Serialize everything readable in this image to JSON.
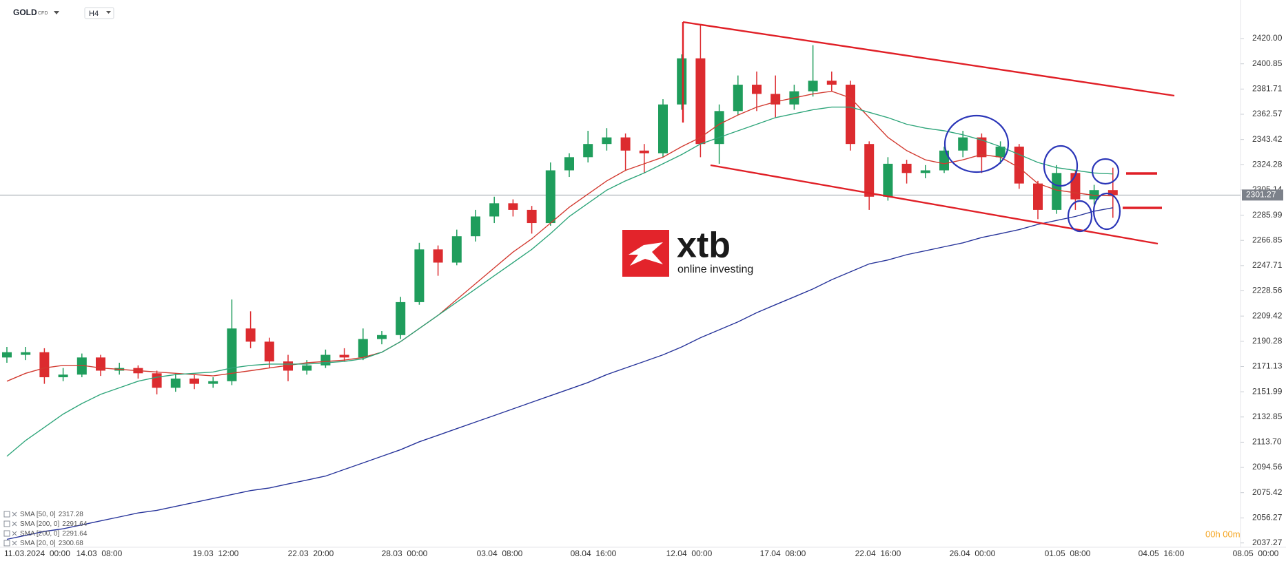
{
  "chart_data": {
    "type": "candlestick",
    "symbol": "GOLD",
    "instrument_type": "CFD",
    "interval": "H4",
    "up_color": "#1f9d5c",
    "down_color": "#dc2b2f",
    "open": [
      2178,
      2180,
      2182,
      2163,
      2165,
      2178,
      2168,
      2170,
      2166,
      2155,
      2162,
      2158,
      2160,
      2200,
      2190,
      2175,
      2168,
      2172,
      2180,
      2178,
      2192,
      2195,
      2220,
      2260,
      2250,
      2270,
      2285,
      2295,
      2290,
      2280,
      2320,
      2330,
      2340,
      2345,
      2335,
      2333,
      2370,
      2405,
      2340,
      2365,
      2385,
      2378,
      2370,
      2380,
      2388,
      2385,
      2340,
      2300,
      2325,
      2318,
      2320,
      2335,
      2345,
      2330,
      2338,
      2310,
      2290,
      2318,
      2298,
      2305
    ],
    "high": [
      2186,
      2186,
      2185,
      2170,
      2181,
      2180,
      2174,
      2172,
      2168,
      2166,
      2165,
      2163,
      2222,
      2213,
      2193,
      2180,
      2176,
      2184,
      2185,
      2200,
      2198,
      2224,
      2265,
      2263,
      2275,
      2290,
      2300,
      2298,
      2293,
      2326,
      2333,
      2350,
      2352,
      2348,
      2340,
      2374,
      2408,
      2431,
      2370,
      2392,
      2395,
      2392,
      2385,
      2415,
      2395,
      2388,
      2342,
      2330,
      2328,
      2324,
      2338,
      2350,
      2348,
      2342,
      2340,
      2312,
      2324,
      2320,
      2309,
      2322
    ],
    "low": [
      2174,
      2176,
      2158,
      2160,
      2163,
      2164,
      2165,
      2162,
      2150,
      2152,
      2154,
      2155,
      2157,
      2185,
      2170,
      2160,
      2165,
      2170,
      2175,
      2176,
      2188,
      2192,
      2218,
      2240,
      2248,
      2266,
      2280,
      2285,
      2272,
      2278,
      2315,
      2326,
      2335,
      2320,
      2318,
      2330,
      2366,
      2330,
      2325,
      2362,
      2365,
      2360,
      2366,
      2376,
      2380,
      2335,
      2290,
      2297,
      2310,
      2314,
      2318,
      2330,
      2318,
      2325,
      2306,
      2283,
      2287,
      2290,
      2294,
      2284
    ],
    "close": [
      2182,
      2182,
      2163,
      2165,
      2178,
      2168,
      2170,
      2166,
      2155,
      2162,
      2158,
      2160,
      2200,
      2190,
      2175,
      2168,
      2172,
      2180,
      2178,
      2192,
      2195,
      2220,
      2260,
      2250,
      2270,
      2285,
      2295,
      2290,
      2280,
      2320,
      2330,
      2340,
      2345,
      2335,
      2333,
      2370,
      2405,
      2340,
      2365,
      2385,
      2378,
      2370,
      2380,
      2388,
      2385,
      2340,
      2300,
      2325,
      2318,
      2320,
      2335,
      2345,
      2330,
      2338,
      2310,
      2290,
      2318,
      2298,
      2305,
      2301.27
    ],
    "series": [
      {
        "color": "#d23a30",
        "values": [
          2160,
          2166,
          2170,
          2172,
          2172,
          2170,
          2169,
          2168,
          2167,
          2166,
          2165,
          2164,
          2166,
          2168,
          2170,
          2172,
          2174,
          2175,
          2176,
          2178,
          2182,
          2190,
          2200,
          2210,
          2222,
          2234,
          2246,
          2258,
          2268,
          2280,
          2292,
          2302,
          2312,
          2320,
          2325,
          2330,
          2338,
          2345,
          2355,
          2362,
          2368,
          2372,
          2375,
          2378,
          2380,
          2375,
          2360,
          2345,
          2335,
          2328,
          2325,
          2328,
          2332,
          2330,
          2322,
          2310,
          2305,
          2303,
          2301,
          2300.68
        ]
      },
      {
        "color": "#2ea57a",
        "values": [
          2103,
          2115,
          2125,
          2135,
          2143,
          2150,
          2155,
          2160,
          2163,
          2165,
          2166,
          2167,
          2170,
          2172,
          2173,
          2173,
          2173,
          2174,
          2175,
          2177,
          2182,
          2190,
          2200,
          2210,
          2220,
          2230,
          2240,
          2250,
          2260,
          2272,
          2285,
          2295,
          2305,
          2312,
          2318,
          2325,
          2332,
          2340,
          2345,
          2350,
          2355,
          2360,
          2363,
          2366,
          2368,
          2368,
          2364,
          2360,
          2355,
          2352,
          2350,
          2347,
          2343,
          2338,
          2332,
          2326,
          2322,
          2320,
          2318,
          2317.28
        ]
      },
      {
        "color": "#26339a",
        "values": [
          2040,
          2043,
          2046,
          2048,
          2051,
          2054,
          2057,
          2060,
          2062,
          2065,
          2068,
          2071,
          2074,
          2077,
          2079,
          2082,
          2085,
          2088,
          2093,
          2098,
          2103,
          2108,
          2114,
          2119,
          2124,
          2129,
          2134,
          2139,
          2144,
          2149,
          2154,
          2159,
          2165,
          2170,
          2175,
          2180,
          2186,
          2193,
          2199,
          2205,
          2212,
          2218,
          2224,
          2230,
          2237,
          2243,
          2249,
          2252,
          2256,
          2259,
          2262,
          2265,
          2269,
          2272,
          2275,
          2279,
          2282,
          2285,
          2289,
          2291.64
        ]
      }
    ],
    "legend_rows": [
      {
        "name": "SMA [50, 0]",
        "value": 2317.28
      },
      {
        "name": "SMA [200, 0]",
        "value": 2291.64
      },
      {
        "name": "SMA [200, 0]",
        "value": 2291.64
      },
      {
        "name": "SMA [20, 0]",
        "value": 2300.68
      }
    ],
    "current_price": 2301.27,
    "ylim": [
      2034,
      2443
    ],
    "yticks": [
      {
        "value": 2420,
        "label": "2420.00"
      },
      2400.85,
      2381.71,
      2362.57,
      2343.42,
      2324.28,
      2305.14,
      2285.99,
      2266.85,
      2247.71,
      2228.56,
      2209.42,
      2190.28,
      2171.13,
      2151.99,
      2132.85,
      {
        "value": 2113.7,
        "label": "2113.70"
      },
      2094.56,
      2075.42,
      2056.27,
      2037.27
    ],
    "xticks": [
      "11.03.2024  00:00",
      "14.03  08:00",
      "19.03  12:00",
      "22.03  20:00",
      "28.03  00:00",
      "03.04  08:00",
      "08.04  16:00",
      "12.04  00:00",
      "17.04  08:00",
      "22.04  16:00",
      "26.04  00:00",
      "01.05  08:00",
      "04.05  16:00",
      "08.05  00:00"
    ],
    "timer": "00h 00m",
    "logo": {
      "name": "xtb",
      "tagline": "online investing"
    }
  }
}
